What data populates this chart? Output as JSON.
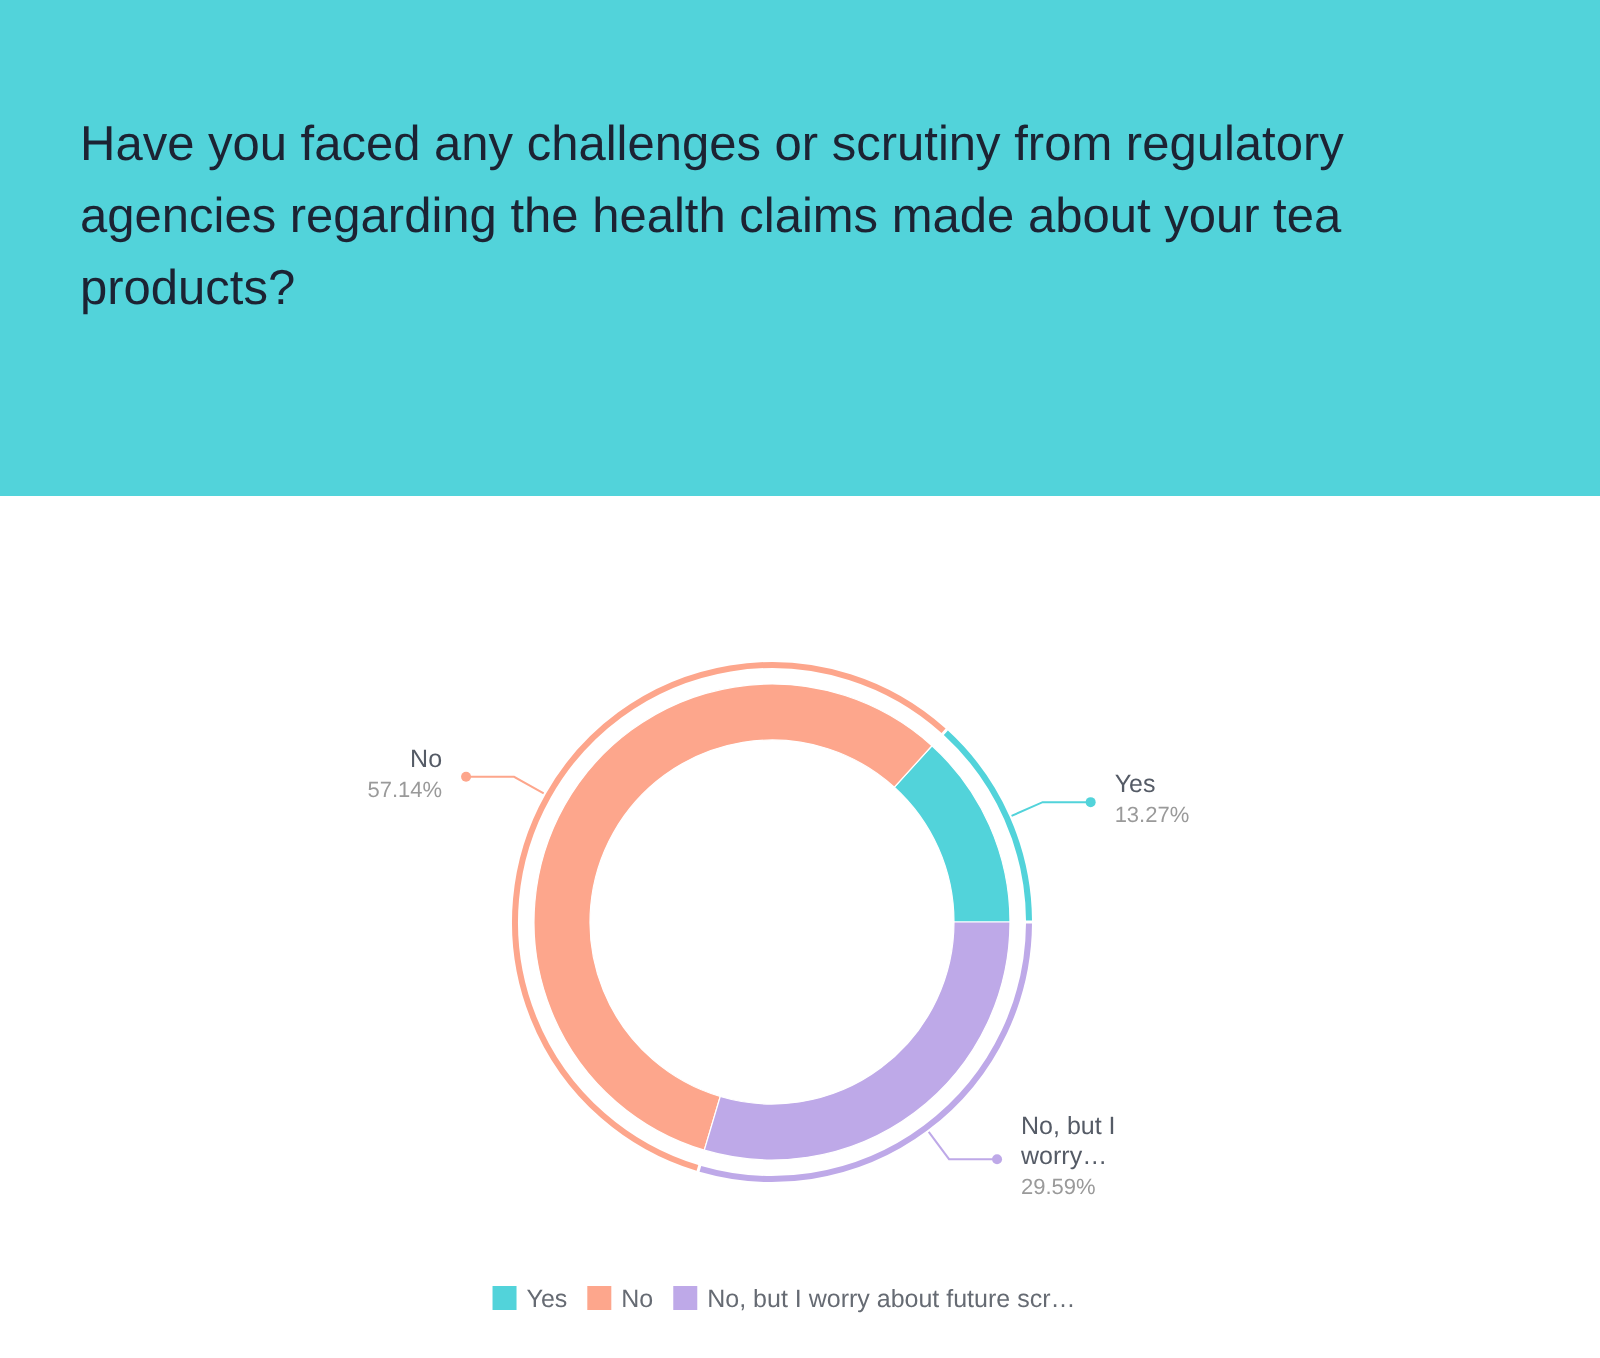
{
  "chart_data": {
    "type": "donut",
    "title": "Have you faced any challenges or scrutiny from regulatory agencies regarding the health claims made about your tea products?",
    "categories": [
      "Yes",
      "No",
      "No, but I worry about future scr…"
    ],
    "values": [
      13.27,
      57.14,
      29.59
    ],
    "colors": [
      "#52d3da",
      "#fda68c",
      "#bea9e8"
    ],
    "value_labels": [
      "13.27%",
      "57.14%",
      "29.59%"
    ],
    "annotations": [
      {
        "text": "No, but I worry…",
        "x": "No, but I worry about future scr…"
      }
    ],
    "legend": "bottom"
  }
}
